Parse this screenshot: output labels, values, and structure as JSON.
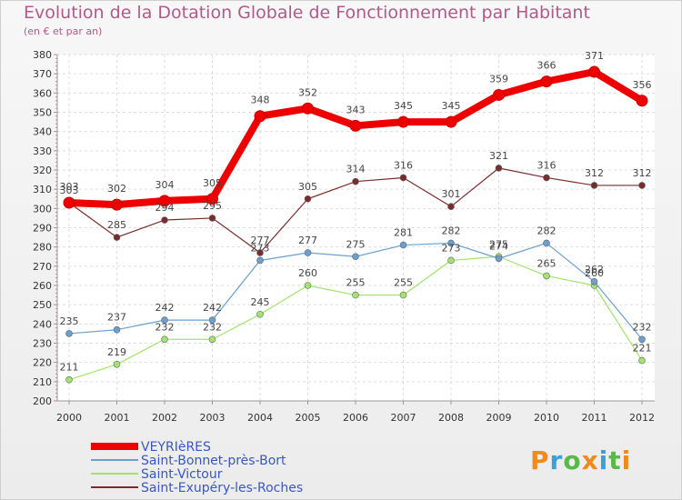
{
  "chart_data": {
    "type": "line",
    "title": "Evolution de la Dotation Globale de Fonctionnement par Habitant",
    "subtitle": "(en € et par an)",
    "xlabel": "",
    "ylabel": "",
    "ylim": [
      200,
      380
    ],
    "y_ticks": [
      200,
      210,
      220,
      230,
      240,
      250,
      260,
      270,
      280,
      290,
      300,
      310,
      320,
      330,
      340,
      350,
      360,
      370,
      380
    ],
    "categories": [
      "2000",
      "2001",
      "2002",
      "2003",
      "2004",
      "2005",
      "2006",
      "2007",
      "2008",
      "2009",
      "2010",
      "2011",
      "2012"
    ],
    "grid": true,
    "legend_position": "bottom-left",
    "series": [
      {
        "name": "VEYRIèRES",
        "color": "#ee0000",
        "values": [
          303,
          302,
          304,
          305,
          348,
          352,
          343,
          345,
          345,
          359,
          366,
          371,
          356
        ]
      },
      {
        "name": "Saint-Bonnet-près-Bort",
        "color": "#6a9fcf",
        "values": [
          235,
          237,
          242,
          242,
          273,
          277,
          275,
          281,
          282,
          274,
          282,
          262,
          232
        ]
      },
      {
        "name": "Saint-Victour",
        "color": "#a2e36f",
        "values": [
          211,
          219,
          232,
          232,
          245,
          260,
          255,
          255,
          273,
          275,
          265,
          260,
          221
        ]
      },
      {
        "name": "Saint-Exupéry-les-Roches",
        "color": "#7a2c2c",
        "values": [
          303,
          285,
          294,
          295,
          277,
          305,
          314,
          316,
          301,
          321,
          316,
          312,
          312
        ]
      }
    ]
  },
  "logo": {
    "letters": [
      "P",
      "r",
      "o",
      "x",
      "i",
      "t",
      "i"
    ],
    "colors": [
      "#f08a1c",
      "#3aa0dc",
      "#58b848",
      "#f08a1c",
      "#3aa0dc",
      "#58b848",
      "#f08a1c"
    ]
  }
}
